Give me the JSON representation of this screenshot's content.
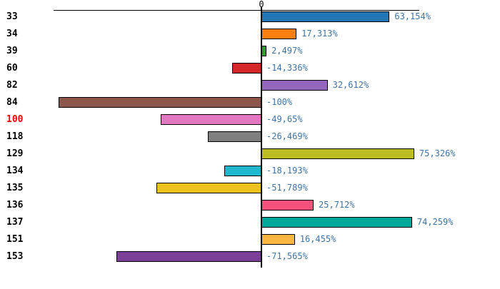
{
  "chart": {
    "axis_zero_label": "0",
    "background": "#ffffff",
    "axis_color": "#000000",
    "bar_border_color": "#000000",
    "value_label_color": "#3e74a8",
    "category_label_color": "#000000",
    "highlight_category_color": "#ee0000"
  },
  "chart_data": {
    "type": "bar",
    "orientation": "horizontal",
    "title": "",
    "xlabel": "",
    "ylabel": "",
    "unit": "%",
    "grid": false,
    "legend": false,
    "xlim": [
      -102.5,
      77.5
    ],
    "categories": [
      "33",
      "34",
      "39",
      "60",
      "82",
      "84",
      "100",
      "118",
      "129",
      "134",
      "135",
      "136",
      "137",
      "151",
      "153"
    ],
    "values": [
      63.154,
      17.313,
      2.497,
      -14.336,
      32.612,
      -100,
      -49.65,
      -26.469,
      75.326,
      -18.193,
      -51.789,
      25.712,
      74.259,
      16.455,
      -71.565
    ],
    "value_labels": [
      "63,154%",
      "17,313%",
      "2,497%",
      "-14,336%",
      "32,612%",
      "-100%",
      "-49,65%",
      "-26,469%",
      "75,326%",
      "-18,193%",
      "-51,789%",
      "25,712%",
      "74,259%",
      "16,455%",
      "-71,565%"
    ],
    "bar_colors": [
      "#2176b5",
      "#fb7e10",
      "#2ca02c",
      "#d62728",
      "#9467bd",
      "#8c564b",
      "#e377c2",
      "#7f7f7f",
      "#bcbd22",
      "#1fb8ce",
      "#edc21f",
      "#f8517d",
      "#00a79b",
      "#fbb742",
      "#7b3f98"
    ],
    "highlighted_category": "100"
  }
}
